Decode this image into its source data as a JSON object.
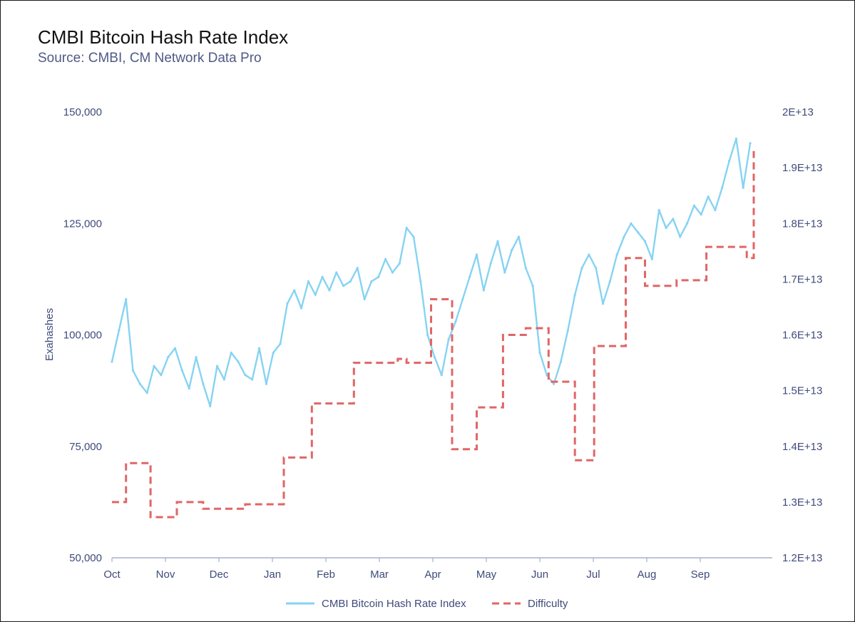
{
  "chart_data": {
    "type": "line",
    "title": "CMBI Bitcoin Hash Rate Index",
    "subtitle": "Source: CMBI, CM Network Data Pro",
    "ylabel": "Exahashes",
    "y2label": "",
    "ylim": [
      50000,
      150000
    ],
    "y2lim": [
      12000000000000.0,
      20000000000000.0
    ],
    "y_ticks": [
      "150,000",
      "125,000",
      "100,000",
      "75,000",
      "50,000"
    ],
    "y2_ticks": [
      "2E+13",
      "1.9E+13",
      "1.8E+13",
      "1.7E+13",
      "1.6E+13",
      "1.5E+13",
      "1.4E+13",
      "1.3E+13",
      "1.2E+13"
    ],
    "x_ticks": [
      "Oct",
      "Nov",
      "Dec",
      "Jan",
      "Feb",
      "Mar",
      "Apr",
      "May",
      "Jun",
      "Jul",
      "Aug",
      "Sep"
    ],
    "x_range_days": [
      0,
      366
    ],
    "legend_position": "bottom-center",
    "series": [
      {
        "name": "CMBI Bitcoin Hash Rate Index",
        "axis": "left",
        "style": "solid",
        "color": "#86d3f2",
        "x": [
          0,
          4,
          8,
          12,
          16,
          20,
          24,
          28,
          32,
          36,
          40,
          44,
          48,
          52,
          56,
          60,
          64,
          68,
          72,
          76,
          80,
          84,
          88,
          92,
          96,
          100,
          104,
          108,
          112,
          116,
          120,
          124,
          128,
          132,
          136,
          140,
          144,
          148,
          152,
          156,
          160,
          164,
          168,
          172,
          176,
          180,
          184,
          188,
          192,
          196,
          200,
          204,
          208,
          212,
          216,
          220,
          224,
          228,
          232,
          236,
          240,
          244,
          248,
          252,
          256,
          260,
          264,
          268,
          272,
          276,
          280,
          284,
          288,
          292,
          296,
          300,
          304,
          308,
          312,
          316,
          320,
          324,
          328,
          332,
          336,
          340,
          344,
          348,
          352,
          356,
          360,
          364
        ],
        "values": [
          94000,
          101000,
          108000,
          92000,
          89000,
          87000,
          93000,
          91000,
          95000,
          97000,
          92000,
          88000,
          95000,
          89000,
          84000,
          93000,
          90000,
          96000,
          94000,
          91000,
          90000,
          97000,
          89000,
          96000,
          98000,
          107000,
          110000,
          106000,
          112000,
          109000,
          113000,
          110000,
          114000,
          111000,
          112000,
          115000,
          108000,
          112000,
          113000,
          117000,
          114000,
          116000,
          124000,
          122000,
          112000,
          100000,
          95000,
          91000,
          99000,
          103000,
          108000,
          113000,
          118000,
          110000,
          116000,
          121000,
          114000,
          119000,
          122000,
          115000,
          111000,
          96000,
          91000,
          89000,
          94000,
          101000,
          109000,
          115000,
          118000,
          115000,
          107000,
          112000,
          118000,
          122000,
          125000,
          123000,
          121000,
          117000,
          128000,
          124000,
          126000,
          122000,
          125000,
          129000,
          127000,
          131000,
          128000,
          133000,
          139000,
          144000,
          133000,
          143000
        ]
      },
      {
        "name": "Difficulty",
        "axis": "right",
        "style": "dashed",
        "color": "#e06666",
        "step_x": [
          0,
          8,
          22,
          37,
          52,
          76,
          98,
          114,
          138,
          163,
          168,
          182,
          194,
          208,
          223,
          236,
          249,
          264,
          275,
          289,
          293,
          304,
          322,
          339,
          362,
          366
        ],
        "values": [
          13000000000000.0,
          13700000000000.0,
          12730000000000.0,
          13000000000000.0,
          12880000000000.0,
          12960000000000.0,
          13800000000000.0,
          14770000000000.0,
          15500000000000.0,
          15570000000000.0,
          15500000000000.0,
          16640000000000.0,
          13950000000000.0,
          14700000000000.0,
          16000000000000.0,
          16120000000000.0,
          15160000000000.0,
          13750000000000.0,
          15800000000000.0,
          15800000000000.0,
          17380000000000.0,
          16880000000000.0,
          16980000000000.0,
          17580000000000.0,
          17380000000000.0,
          19300000000000.0
        ]
      }
    ]
  }
}
